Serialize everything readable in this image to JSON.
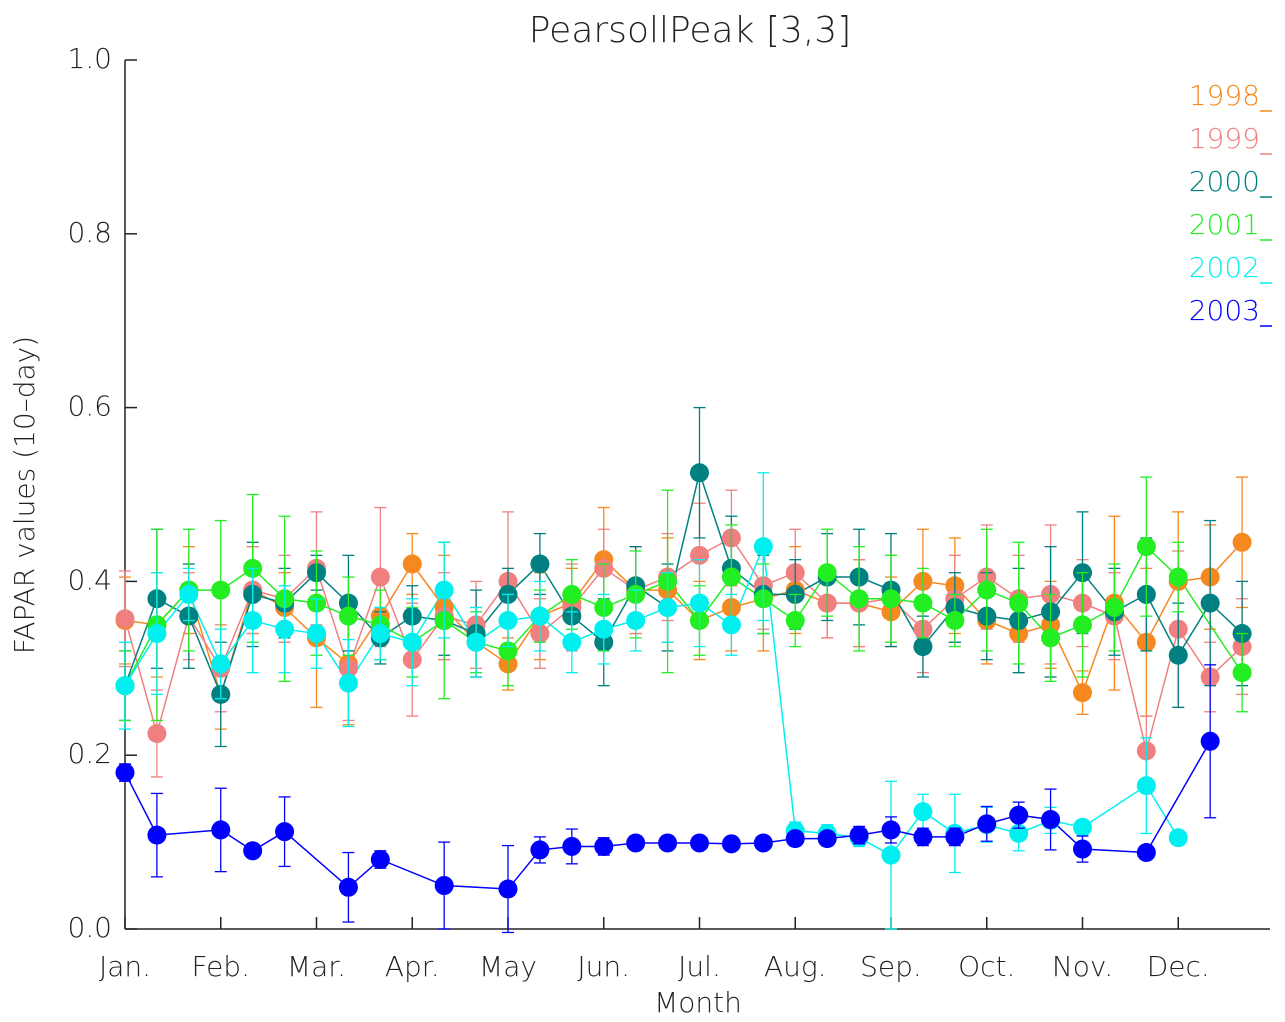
{
  "chart_data": {
    "type": "line",
    "title": "PearsollPeak [3,3]",
    "x_label": "Month",
    "y_label": "FAPAR values (10–day)",
    "xlim": [
      0,
      36
    ],
    "ylim": [
      0,
      1.0
    ],
    "xticks": [
      {
        "value": 0,
        "label": "Jan."
      },
      {
        "value": 3,
        "label": "Feb."
      },
      {
        "value": 6,
        "label": "Mar."
      },
      {
        "value": 9,
        "label": "Apr."
      },
      {
        "value": 12,
        "label": "May"
      },
      {
        "value": 15,
        "label": "Jun."
      },
      {
        "value": 18,
        "label": "Jul."
      },
      {
        "value": 21,
        "label": "Aug."
      },
      {
        "value": 24,
        "label": "Sep."
      },
      {
        "value": 27,
        "label": "Oct."
      },
      {
        "value": 30,
        "label": "Nov."
      },
      {
        "value": 33,
        "label": "Dec."
      }
    ],
    "yticks": [
      {
        "value": 0,
        "label": "0.0"
      },
      {
        "value": 0.2,
        "label": "0.2"
      },
      {
        "value": 0.4,
        "label": "0.4"
      },
      {
        "value": 0.6,
        "label": "0.6"
      },
      {
        "value": 0.8,
        "label": "0.8"
      },
      {
        "value": 1.0,
        "label": "1.0"
      }
    ],
    "legend": "top-right",
    "series": [
      {
        "name": "1998",
        "color": "#f5891f",
        "x": [
          0,
          1,
          2,
          3,
          4,
          5,
          6,
          7,
          8,
          9,
          10,
          11,
          12,
          13,
          14,
          15,
          16,
          17,
          18,
          19,
          20,
          21,
          22,
          23,
          24,
          25,
          26,
          27,
          28,
          29,
          30,
          31,
          32,
          33,
          34,
          35
        ],
        "values": [
          0.355,
          0.35,
          0.39,
          0.27,
          0.39,
          0.37,
          0.335,
          0.305,
          0.36,
          0.42,
          0.37,
          0.33,
          0.305,
          0.36,
          0.375,
          0.425,
          0.39,
          0.39,
          0.355,
          0.37,
          0.38,
          0.39,
          0.375,
          0.375,
          0.365,
          0.4,
          0.395,
          0.355,
          0.34,
          0.35,
          0.272,
          0.375,
          0.33,
          0.4,
          0.405,
          0.445
        ],
        "errors": [
          0.05,
          0.06,
          0.05,
          0.04,
          0.05,
          0.04,
          0.08,
          0.07,
          0.05,
          0.035,
          0.06,
          0.04,
          0.03,
          0.05,
          0.04,
          0.06,
          0.05,
          0.06,
          0.045,
          0.05,
          0.06,
          0.05,
          0.04,
          0.05,
          0.04,
          0.06,
          0.055,
          0.05,
          0.045,
          0.05,
          0.025,
          0.1,
          0.085,
          0.08,
          0.06,
          0.075
        ]
      },
      {
        "name": "1999",
        "color": "#f08080",
        "x": [
          0,
          1,
          2,
          3,
          4,
          5,
          6,
          7,
          8,
          9,
          10,
          11,
          12,
          13,
          14,
          15,
          16,
          17,
          18,
          19,
          20,
          21,
          22,
          23,
          24,
          25,
          26,
          27,
          28,
          29,
          30,
          31,
          32,
          33,
          34,
          35
        ],
        "values": [
          0.357,
          0.225,
          0.36,
          0.3,
          0.39,
          0.38,
          0.415,
          0.3,
          0.405,
          0.31,
          0.36,
          0.35,
          0.4,
          0.34,
          0.37,
          0.415,
          0.39,
          0.405,
          0.43,
          0.45,
          0.395,
          0.41,
          0.375,
          0.375,
          0.38,
          0.345,
          0.38,
          0.405,
          0.38,
          0.385,
          0.375,
          0.36,
          0.205,
          0.345,
          0.29,
          0.325
        ],
        "errors": [
          0.055,
          0.05,
          0.05,
          0.05,
          0.05,
          0.05,
          0.065,
          0.06,
          0.08,
          0.065,
          0.05,
          0.05,
          0.08,
          0.04,
          0.05,
          0.045,
          0.05,
          0.05,
          0.06,
          0.055,
          0.05,
          0.05,
          0.04,
          0.05,
          0.05,
          0.05,
          0.05,
          0.06,
          0.05,
          0.08,
          0.05,
          0.05,
          0.04,
          0.09,
          0.04,
          0.055
        ]
      },
      {
        "name": "2000",
        "color": "#008080",
        "x": [
          0,
          1,
          2,
          3,
          4,
          5,
          6,
          7,
          8,
          9,
          10,
          11,
          12,
          13,
          14,
          15,
          16,
          17,
          18,
          19,
          20,
          21,
          22,
          23,
          24,
          25,
          26,
          27,
          28,
          29,
          30,
          31,
          32,
          33,
          34,
          35
        ],
        "values": [
          0.28,
          0.38,
          0.36,
          0.27,
          0.385,
          0.375,
          0.41,
          0.375,
          0.335,
          0.36,
          0.355,
          0.34,
          0.385,
          0.42,
          0.36,
          0.33,
          0.395,
          0.37,
          0.525,
          0.415,
          0.385,
          0.385,
          0.405,
          0.405,
          0.39,
          0.325,
          0.37,
          0.36,
          0.355,
          0.365,
          0.41,
          0.365,
          0.385,
          0.315,
          0.375,
          0.34
        ],
        "errors": [
          0.04,
          0.08,
          0.06,
          0.06,
          0.06,
          0.04,
          0.02,
          0.055,
          0.03,
          0.035,
          0.04,
          0.05,
          0.03,
          0.035,
          0.03,
          0.05,
          0.045,
          0.05,
          0.075,
          0.06,
          0.045,
          0.04,
          0.05,
          0.055,
          0.065,
          0.035,
          0.04,
          0.05,
          0.06,
          0.075,
          0.07,
          0.05,
          0.065,
          0.06,
          0.095,
          0.06
        ]
      },
      {
        "name": "2001",
        "color": "#22ee22",
        "x": [
          0,
          1,
          2,
          3,
          4,
          5,
          6,
          7,
          8,
          9,
          10,
          11,
          12,
          13,
          14,
          15,
          16,
          17,
          18,
          19,
          20,
          21,
          22,
          23,
          24,
          25,
          26,
          27,
          28,
          29,
          30,
          31,
          32,
          33,
          35
        ],
        "values": [
          0.28,
          0.35,
          0.39,
          0.39,
          0.415,
          0.38,
          0.375,
          0.36,
          0.35,
          0.33,
          0.355,
          0.33,
          0.32,
          0.36,
          0.385,
          0.37,
          0.385,
          0.4,
          0.355,
          0.405,
          0.38,
          0.355,
          0.41,
          0.38,
          0.38,
          0.375,
          0.355,
          0.39,
          0.375,
          0.335,
          0.35,
          0.37,
          0.44,
          0.405,
          0.295
        ],
        "errors": [
          0.04,
          0.11,
          0.07,
          0.08,
          0.085,
          0.095,
          0.06,
          0.045,
          0.04,
          0.04,
          0.09,
          0.035,
          0.04,
          0.03,
          0.04,
          0.05,
          0.05,
          0.105,
          0.04,
          0.06,
          0.04,
          0.03,
          0.05,
          0.06,
          0.05,
          0.04,
          0.03,
          0.07,
          0.07,
          0.05,
          0.06,
          0.05,
          0.08,
          0.04,
          0.045
        ]
      },
      {
        "name": "2002",
        "color": "#00f0f0",
        "x": [
          0,
          1,
          2,
          3,
          4,
          5,
          6,
          7,
          8,
          9,
          10,
          11,
          12,
          13,
          14,
          15,
          16,
          17,
          18,
          19,
          20,
          21,
          22,
          23,
          24,
          25,
          26,
          27,
          28,
          29,
          30,
          32,
          33
        ],
        "values": [
          0.28,
          0.34,
          0.385,
          0.305,
          0.355,
          0.345,
          0.34,
          0.283,
          0.34,
          0.33,
          0.39,
          0.33,
          0.355,
          0.36,
          0.33,
          0.345,
          0.355,
          0.37,
          0.375,
          0.35,
          0.44,
          0.113,
          0.11,
          0.105,
          0.085,
          0.135,
          0.11,
          0.12,
          0.11,
          0.125,
          0.117,
          0.165,
          0.105
        ],
        "errors": [
          0.05,
          0.07,
          0.03,
          0.04,
          0.06,
          0.05,
          0.04,
          0.05,
          0.03,
          0.05,
          0.055,
          0.04,
          0.03,
          0.04,
          0.035,
          0.04,
          0.035,
          0.04,
          0.05,
          0.035,
          0.085,
          0.01,
          0.01,
          0.01,
          0.085,
          0.02,
          0.045,
          0.02,
          0.02,
          0.015,
          0.005,
          0.055,
          0.005
        ]
      },
      {
        "name": "2003",
        "color": "#0000ff",
        "x": [
          0,
          1,
          3,
          4,
          5,
          7,
          8,
          10,
          12,
          13,
          14,
          15,
          16,
          17,
          18,
          19,
          20,
          21,
          22,
          23,
          24,
          25,
          26,
          27,
          28,
          29,
          30,
          32,
          34
        ],
        "values": [
          0.18,
          0.108,
          0.114,
          0.09,
          0.112,
          0.048,
          0.08,
          0.05,
          0.046,
          0.091,
          0.095,
          0.095,
          0.099,
          0.099,
          0.099,
          0.098,
          0.099,
          0.104,
          0.104,
          0.108,
          0.114,
          0.106,
          0.106,
          0.121,
          0.131,
          0.126,
          0.092,
          0.088,
          0.216
        ],
        "errors": [
          0.01,
          0.048,
          0.048,
          0.008,
          0.04,
          0.04,
          0.01,
          0.05,
          0.05,
          0.015,
          0.02,
          0.01,
          0.008,
          0.008,
          0.005,
          0.005,
          0.005,
          0.008,
          0.008,
          0.01,
          0.015,
          0.01,
          0.01,
          0.02,
          0.015,
          0.035,
          0.015,
          0.005,
          0.088
        ]
      }
    ]
  }
}
